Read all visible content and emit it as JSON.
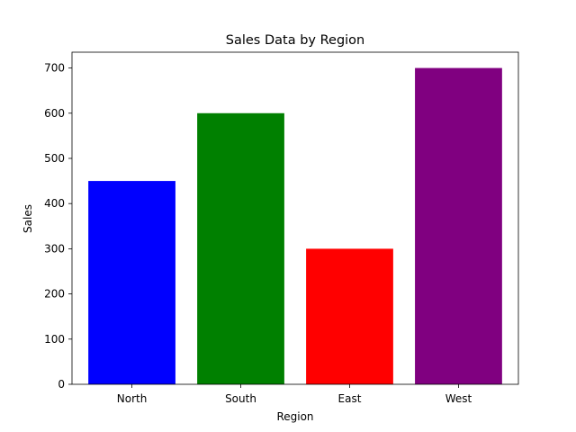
{
  "chart_data": {
    "type": "bar",
    "title": "Sales Data by Region",
    "xlabel": "Region",
    "ylabel": "Sales",
    "categories": [
      "North",
      "South",
      "East",
      "West"
    ],
    "values": [
      450,
      600,
      300,
      700
    ],
    "colors": [
      "#0000ff",
      "#008000",
      "#ff0000",
      "#800080"
    ],
    "ylim": [
      0,
      735
    ],
    "yticks": [
      0,
      100,
      200,
      300,
      400,
      500,
      600,
      700
    ],
    "grid": false,
    "legend": "none"
  }
}
